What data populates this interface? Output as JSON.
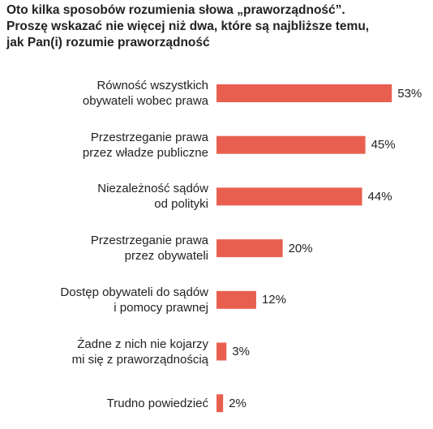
{
  "chart_data": {
    "type": "bar",
    "orientation": "horizontal",
    "title": "Oto kilka sposobów rozumienia słowa „praworządność”.\nProszę wskazać nie więcej niż dwa, które są najbliższe temu,\njak Pan(i) rozumie praworządność",
    "categories": [
      "Równość wszystkich\nobywateli wobec prawa",
      "Przestrzeganie prawa\nprzez władze publiczne",
      "Niezależność sądów\nod polityki",
      "Przestrzeganie prawa\nprzez obywateli",
      "Dostęp obywateli do sądów\ni pomocy prawnej",
      "Żadne z nich nie kojarzy\nmi się z praworządnością",
      "Trudno powiedzieć"
    ],
    "values": [
      53,
      45,
      44,
      20,
      12,
      3,
      2
    ],
    "value_labels": [
      "53%",
      "45%",
      "44%",
      "20%",
      "12%",
      "3%",
      "2%"
    ],
    "color": "#e85f50"
  }
}
